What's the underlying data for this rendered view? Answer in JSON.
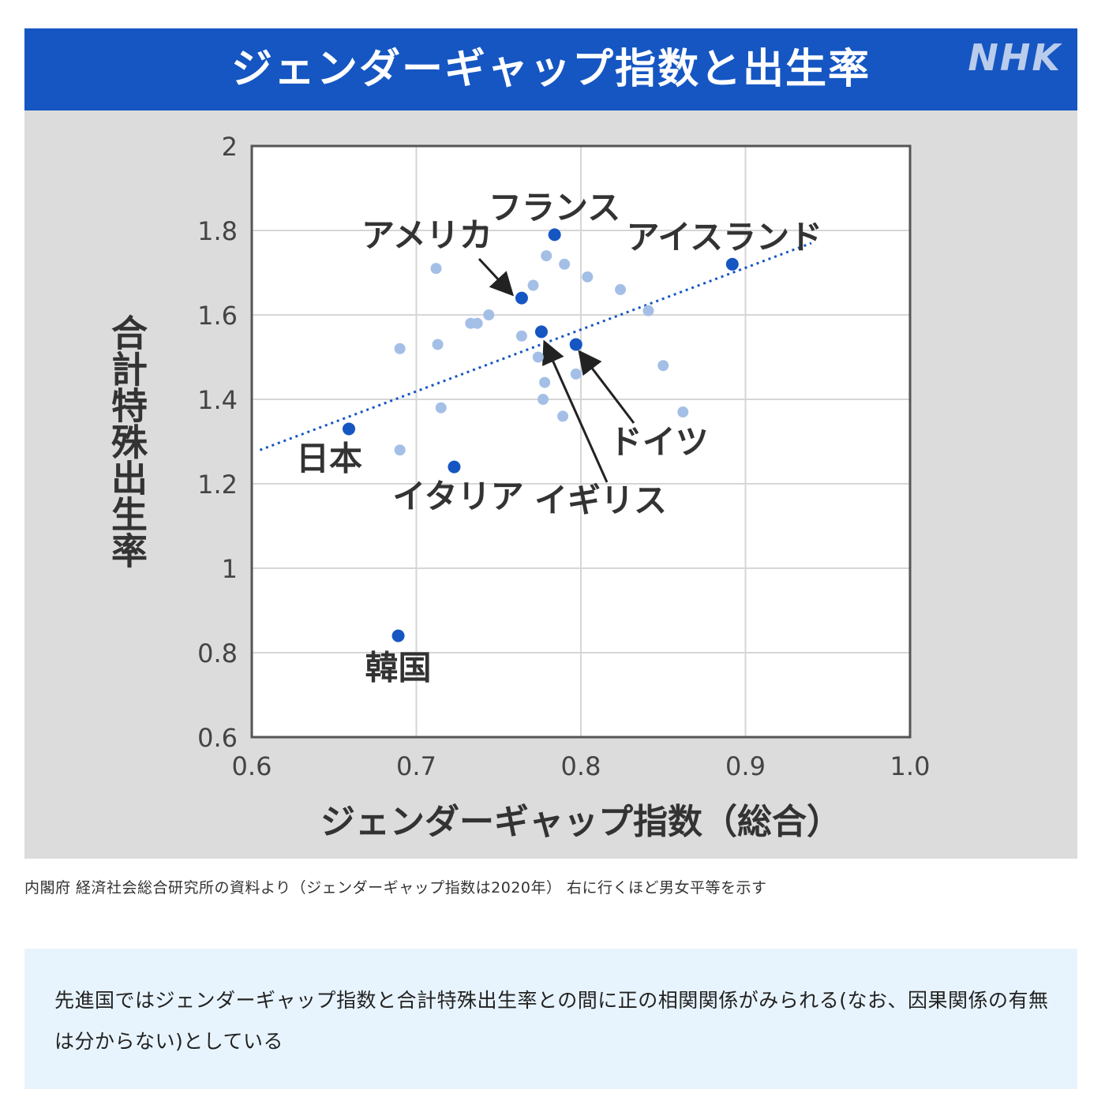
{
  "header": {
    "title": "ジェンダーギャップ指数と出生率",
    "logo": "NHK"
  },
  "chart_data": {
    "type": "scatter",
    "title": "ジェンダーギャップ指数と出生率",
    "xlabel": "ジェンダーギャップ指数（総合）",
    "ylabel": "合計特殊出生率",
    "xlim": [
      0.6,
      1.0
    ],
    "ylim": [
      0.6,
      2.0
    ],
    "x_ticks": [
      "0.6",
      "0.7",
      "0.8",
      "0.9",
      "1.0"
    ],
    "y_ticks": [
      "2",
      "1.8",
      "1.6",
      "1.4",
      "1.2",
      "1",
      "0.8",
      "0.6"
    ],
    "grid": true,
    "trendline": {
      "from": [
        0.605,
        1.28
      ],
      "to": [
        0.94,
        1.77
      ]
    },
    "highlight_color": "#1556c2",
    "other_color": "#a4bfe6",
    "highlighted": [
      {
        "label": "フランス",
        "x": 0.784,
        "y": 1.79
      },
      {
        "label": "アイスランド",
        "x": 0.892,
        "y": 1.72
      },
      {
        "label": "アメリカ",
        "x": 0.764,
        "y": 1.64
      },
      {
        "label": "イギリス",
        "x": 0.776,
        "y": 1.56
      },
      {
        "label": "ドイツ",
        "x": 0.797,
        "y": 1.53
      },
      {
        "label": "日本",
        "x": 0.659,
        "y": 1.33
      },
      {
        "label": "イタリア",
        "x": 0.723,
        "y": 1.24
      },
      {
        "label": "韓国",
        "x": 0.689,
        "y": 0.84
      }
    ],
    "others": [
      {
        "x": 0.712,
        "y": 1.71
      },
      {
        "x": 0.69,
        "y": 1.52
      },
      {
        "x": 0.713,
        "y": 1.53
      },
      {
        "x": 0.715,
        "y": 1.38
      },
      {
        "x": 0.69,
        "y": 1.28
      },
      {
        "x": 0.733,
        "y": 1.58
      },
      {
        "x": 0.737,
        "y": 1.58
      },
      {
        "x": 0.744,
        "y": 1.6
      },
      {
        "x": 0.764,
        "y": 1.55
      },
      {
        "x": 0.771,
        "y": 1.67
      },
      {
        "x": 0.779,
        "y": 1.74
      },
      {
        "x": 0.79,
        "y": 1.72
      },
      {
        "x": 0.804,
        "y": 1.69
      },
      {
        "x": 0.824,
        "y": 1.66
      },
      {
        "x": 0.841,
        "y": 1.61
      },
      {
        "x": 0.85,
        "y": 1.48
      },
      {
        "x": 0.862,
        "y": 1.37
      },
      {
        "x": 0.774,
        "y": 1.5
      },
      {
        "x": 0.778,
        "y": 1.44
      },
      {
        "x": 0.777,
        "y": 1.4
      },
      {
        "x": 0.789,
        "y": 1.36
      },
      {
        "x": 0.797,
        "y": 1.46
      }
    ]
  },
  "caption": "内閣府 経済社会総合研究所の資料より（ジェンダーギャップ指数は2020年） 右に行くほど男女平等を示す",
  "note": "先進国ではジェンダーギャップ指数と合計特殊出生率との間に正の相関関係がみられる(なお、因果関係の有無は分からない)としている"
}
